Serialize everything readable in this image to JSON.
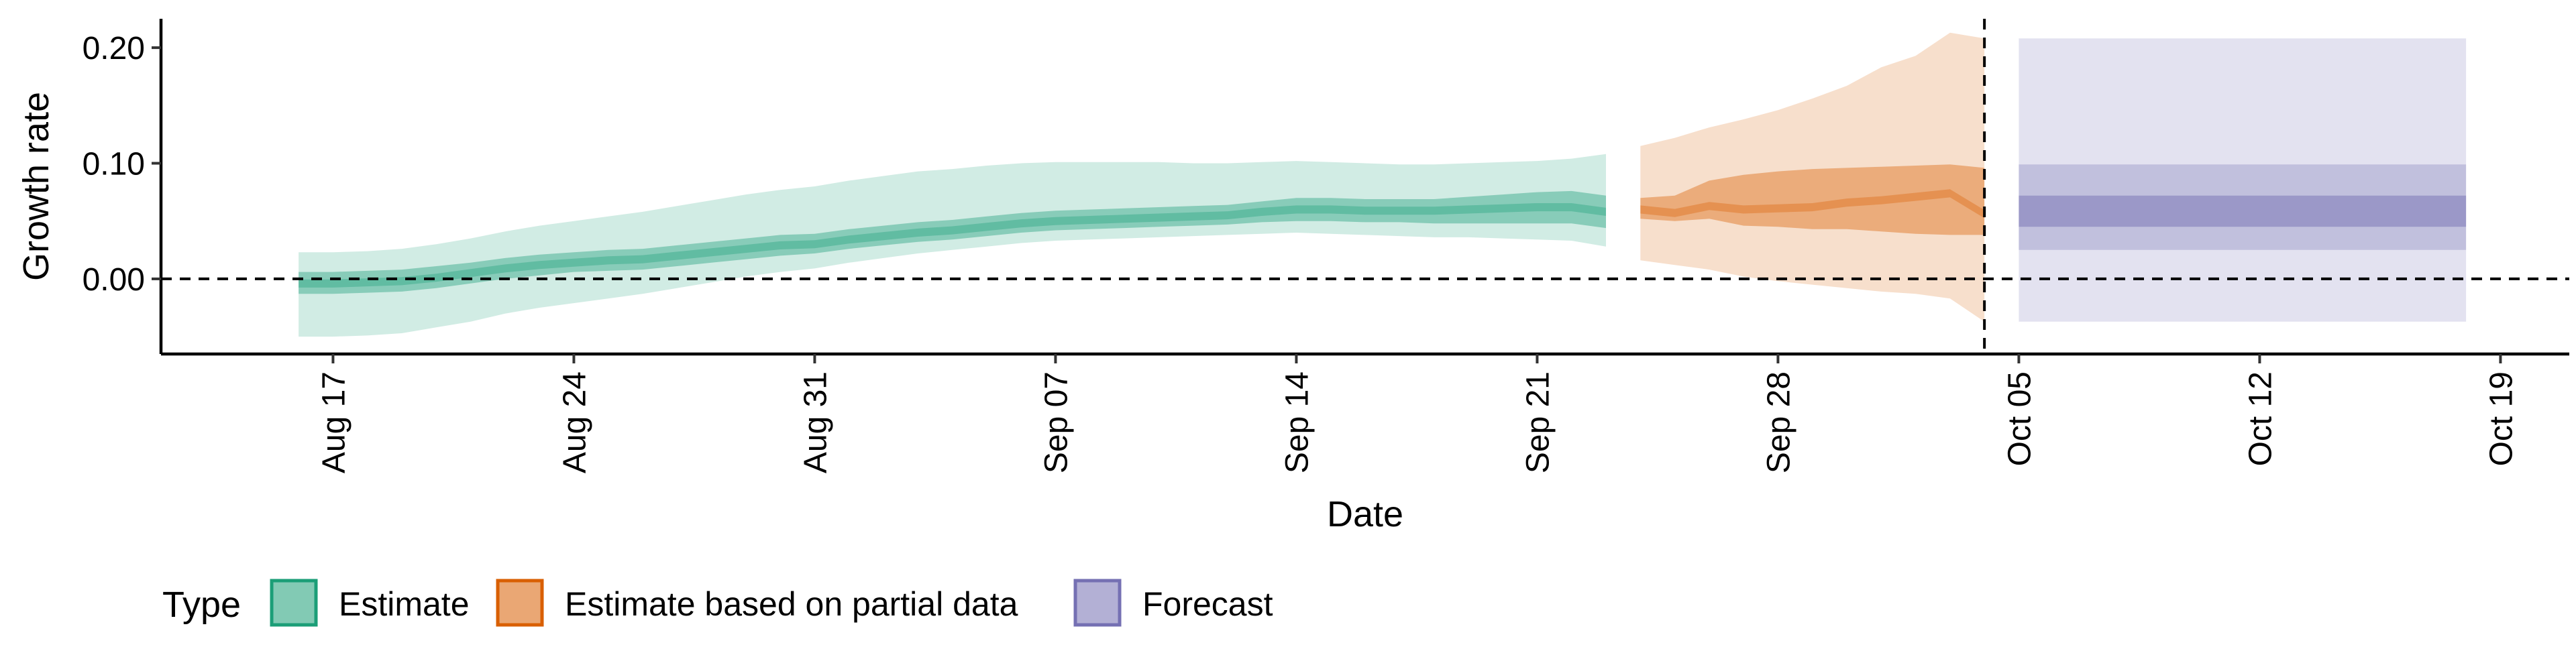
{
  "chart_data": {
    "type": "area",
    "xlabel": "Date",
    "ylabel": "Growth rate",
    "x_range": [
      "2020-08-12",
      "2020-10-21"
    ],
    "ylim": [
      -0.065,
      0.225
    ],
    "x_ticks": [
      {
        "date": "2020-08-17",
        "label": "Aug 17"
      },
      {
        "date": "2020-08-24",
        "label": "Aug 24"
      },
      {
        "date": "2020-08-31",
        "label": "Aug 31"
      },
      {
        "date": "2020-09-07",
        "label": "Sep 07"
      },
      {
        "date": "2020-09-14",
        "label": "Sep 14"
      },
      {
        "date": "2020-09-21",
        "label": "Sep 21"
      },
      {
        "date": "2020-09-28",
        "label": "Sep 28"
      },
      {
        "date": "2020-10-05",
        "label": "Oct 05"
      },
      {
        "date": "2020-10-12",
        "label": "Oct 12"
      },
      {
        "date": "2020-10-19",
        "label": "Oct 19"
      }
    ],
    "y_ticks": [
      {
        "value": 0.0,
        "label": "0.00"
      },
      {
        "value": 0.1,
        "label": "0.10"
      },
      {
        "value": 0.2,
        "label": "0.20"
      }
    ],
    "reference_lines": [
      {
        "axis": "y",
        "value": 0.0,
        "style": "dashed"
      },
      {
        "axis": "x",
        "value": "2020-10-04",
        "style": "dashed"
      }
    ],
    "legend": {
      "title": "Type",
      "position": "bottom-left",
      "items": [
        {
          "label": "Estimate",
          "color": "#1b9e77"
        },
        {
          "label": "Estimate based on partial data",
          "color": "#d95f02"
        },
        {
          "label": "Forecast",
          "color": "#7570b3"
        }
      ]
    },
    "series": [
      {
        "type_label": "Estimate",
        "color": "#1b9e77",
        "dates": [
          "2020-08-16",
          "2020-08-17",
          "2020-08-18",
          "2020-08-19",
          "2020-08-20",
          "2020-08-21",
          "2020-08-22",
          "2020-08-23",
          "2020-08-24",
          "2020-08-25",
          "2020-08-26",
          "2020-08-27",
          "2020-08-28",
          "2020-08-29",
          "2020-08-30",
          "2020-08-31",
          "2020-09-01",
          "2020-09-02",
          "2020-09-03",
          "2020-09-04",
          "2020-09-05",
          "2020-09-06",
          "2020-09-07",
          "2020-09-08",
          "2020-09-09",
          "2020-09-10",
          "2020-09-11",
          "2020-09-12",
          "2020-09-13",
          "2020-09-14",
          "2020-09-15",
          "2020-09-16",
          "2020-09-17",
          "2020-09-18",
          "2020-09-19",
          "2020-09-20",
          "2020-09-21",
          "2020-09-22",
          "2020-09-23"
        ],
        "median": [
          -0.004,
          -0.004,
          -0.003,
          -0.002,
          0.001,
          0.005,
          0.009,
          0.012,
          0.014,
          0.016,
          0.017,
          0.02,
          0.023,
          0.026,
          0.029,
          0.03,
          0.034,
          0.037,
          0.04,
          0.042,
          0.045,
          0.048,
          0.05,
          0.051,
          0.052,
          0.053,
          0.054,
          0.055,
          0.058,
          0.06,
          0.06,
          0.059,
          0.059,
          0.059,
          0.06,
          0.061,
          0.062,
          0.062,
          0.058
        ],
        "lower_50": [
          -0.013,
          -0.013,
          -0.012,
          -0.011,
          -0.008,
          -0.004,
          0.0,
          0.003,
          0.006,
          0.007,
          0.008,
          0.011,
          0.014,
          0.017,
          0.02,
          0.022,
          0.026,
          0.029,
          0.032,
          0.034,
          0.037,
          0.04,
          0.042,
          0.043,
          0.044,
          0.045,
          0.046,
          0.047,
          0.049,
          0.05,
          0.05,
          0.049,
          0.049,
          0.048,
          0.048,
          0.048,
          0.048,
          0.048,
          0.044
        ],
        "upper_50": [
          0.006,
          0.006,
          0.007,
          0.008,
          0.011,
          0.014,
          0.018,
          0.021,
          0.023,
          0.025,
          0.026,
          0.029,
          0.032,
          0.035,
          0.038,
          0.039,
          0.043,
          0.046,
          0.049,
          0.051,
          0.054,
          0.057,
          0.059,
          0.06,
          0.061,
          0.062,
          0.063,
          0.064,
          0.067,
          0.07,
          0.07,
          0.069,
          0.069,
          0.069,
          0.071,
          0.073,
          0.075,
          0.076,
          0.072
        ],
        "lower_90": [
          -0.05,
          -0.05,
          -0.049,
          -0.047,
          -0.042,
          -0.037,
          -0.03,
          -0.025,
          -0.021,
          -0.017,
          -0.013,
          -0.008,
          -0.003,
          0.002,
          0.006,
          0.009,
          0.014,
          0.018,
          0.022,
          0.025,
          0.028,
          0.031,
          0.033,
          0.034,
          0.035,
          0.036,
          0.037,
          0.038,
          0.039,
          0.04,
          0.039,
          0.038,
          0.037,
          0.036,
          0.036,
          0.035,
          0.034,
          0.033,
          0.028
        ],
        "upper_90": [
          0.023,
          0.023,
          0.024,
          0.026,
          0.03,
          0.035,
          0.041,
          0.046,
          0.05,
          0.054,
          0.058,
          0.063,
          0.068,
          0.073,
          0.077,
          0.08,
          0.085,
          0.089,
          0.093,
          0.095,
          0.098,
          0.1,
          0.101,
          0.101,
          0.101,
          0.101,
          0.1,
          0.1,
          0.101,
          0.102,
          0.101,
          0.1,
          0.099,
          0.099,
          0.1,
          0.101,
          0.102,
          0.104,
          0.108
        ]
      },
      {
        "type_label": "Estimate based on partial data",
        "color": "#d95f02",
        "dates": [
          "2020-09-24",
          "2020-09-25",
          "2020-09-26",
          "2020-09-27",
          "2020-09-28",
          "2020-09-29",
          "2020-09-30",
          "2020-10-01",
          "2020-10-02",
          "2020-10-03",
          "2020-10-04"
        ],
        "median": [
          0.06,
          0.057,
          0.063,
          0.06,
          0.061,
          0.062,
          0.066,
          0.068,
          0.071,
          0.074,
          0.056
        ],
        "lower_50": [
          0.052,
          0.05,
          0.052,
          0.046,
          0.045,
          0.043,
          0.043,
          0.041,
          0.039,
          0.038,
          0.038
        ],
        "upper_50": [
          0.07,
          0.072,
          0.085,
          0.09,
          0.093,
          0.095,
          0.096,
          0.097,
          0.098,
          0.099,
          0.096
        ],
        "lower_90": [
          0.016,
          0.012,
          0.008,
          0.002,
          -0.002,
          -0.005,
          -0.008,
          -0.011,
          -0.013,
          -0.017,
          -0.037
        ],
        "upper_90": [
          0.115,
          0.122,
          0.131,
          0.138,
          0.146,
          0.156,
          0.167,
          0.183,
          0.193,
          0.213,
          0.208
        ]
      },
      {
        "type_label": "Forecast",
        "color": "#7570b3",
        "dates": [
          "2020-10-05",
          "2020-10-18"
        ],
        "median": [
          0.059,
          0.059
        ],
        "lower_30": [
          0.045,
          0.045
        ],
        "upper_30": [
          0.072,
          0.072
        ],
        "lower_60": [
          0.025,
          0.025
        ],
        "upper_60": [
          0.099,
          0.099
        ],
        "lower_90": [
          -0.037,
          -0.037
        ],
        "upper_90": [
          0.208,
          0.208
        ]
      }
    ]
  }
}
